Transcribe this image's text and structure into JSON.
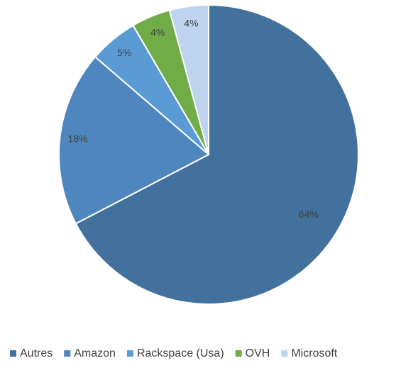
{
  "chart_data": {
    "type": "pie",
    "categories": [
      "Autres",
      "Amazon",
      "Rackspace (Usa)",
      "OVH",
      "Microsoft"
    ],
    "values": [
      64,
      18,
      5,
      4,
      4
    ],
    "value_labels": [
      "64%",
      "18%",
      "5%",
      "4%",
      "4%"
    ],
    "colors": [
      "#41719c",
      "#4e86bd",
      "#5b9bd5",
      "#70ad47",
      "#bdd3ee"
    ],
    "legend": "bottom"
  }
}
